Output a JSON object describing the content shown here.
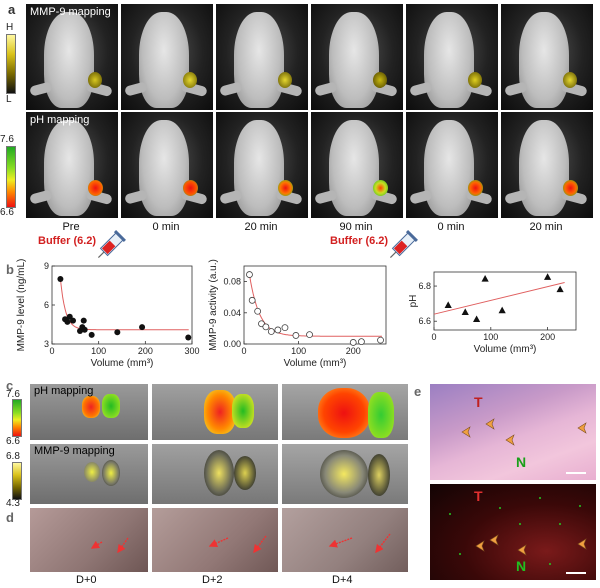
{
  "panel_a": {
    "letter": "a",
    "row1_label": "MMP-9 mapping",
    "row2_label": "pH mapping",
    "bar1_top": "H",
    "bar1_bottom": "L",
    "bar2_top": "7.6",
    "bar2_bottom": "6.6",
    "time_labels": [
      "Pre",
      "0 min",
      "20 min",
      "90 min",
      "0 min",
      "20 min"
    ],
    "buffer_labels": [
      "Buffer (6.2)",
      "Buffer (6.2)"
    ]
  },
  "panel_b": {
    "letter": "b",
    "colors": {
      "fit": "#e06060",
      "marker": "#111111"
    }
  },
  "chart_data": [
    {
      "type": "scatter",
      "xlabel": "Volume (mm³)",
      "ylabel": "MMP-9 level (ng/mL)",
      "xticks": [
        "0",
        "100",
        "200",
        "300"
      ],
      "yticks": [
        "3",
        "6",
        "9"
      ],
      "xlim": [
        0,
        300
      ],
      "ylim": [
        3,
        9
      ],
      "marker": "filled-circle",
      "x": [
        18,
        28,
        33,
        38,
        45,
        60,
        65,
        68,
        70,
        85,
        140,
        193,
        292
      ],
      "y": [
        8.0,
        4.9,
        4.7,
        5.1,
        4.8,
        4.0,
        4.3,
        4.8,
        4.1,
        3.7,
        3.9,
        4.3,
        3.5
      ],
      "fit": {
        "type": "exponential-decay",
        "plateau": 4.1
      }
    },
    {
      "type": "scatter",
      "xlabel": "Volume (mm³)",
      "ylabel": "MMP-9 activity (a.u.)",
      "xticks": [
        "0",
        "100",
        "200"
      ],
      "yticks": [
        "0.00",
        "0.04",
        "0.08"
      ],
      "xlim": [
        0,
        260
      ],
      "ylim": [
        0,
        0.1
      ],
      "marker": "open-circle",
      "x": [
        10,
        15,
        25,
        32,
        40,
        50,
        62,
        75,
        95,
        120,
        200,
        215,
        250
      ],
      "y": [
        0.089,
        0.056,
        0.042,
        0.026,
        0.022,
        0.016,
        0.018,
        0.021,
        0.011,
        0.012,
        0.002,
        0.003,
        0.005
      ],
      "fit": {
        "type": "exponential-decay",
        "plateau": 0.01
      }
    },
    {
      "type": "scatter",
      "xlabel": "Volume (mm³)",
      "ylabel": "pH",
      "xticks": [
        "0",
        "100",
        "200"
      ],
      "yticks": [
        "6.6",
        "6.8"
      ],
      "xlim": [
        0,
        250
      ],
      "ylim": [
        6.55,
        6.88
      ],
      "marker": "filled-triangle",
      "x": [
        25,
        55,
        75,
        90,
        120,
        200,
        222
      ],
      "y": [
        6.69,
        6.65,
        6.61,
        6.84,
        6.66,
        6.85,
        6.78
      ],
      "fit": {
        "type": "linear",
        "y_at_0": 6.64,
        "y_at_230": 6.82
      }
    }
  ],
  "panel_c": {
    "letter": "c",
    "row1_label": "pH mapping",
    "row2_label": "MMP-9 mapping",
    "bar1_top": "7.6",
    "bar1_bottom": "6.6",
    "bar2_top": "6.8",
    "bar2_bottom": "4.3"
  },
  "panel_d": {
    "letter": "d",
    "day_labels": [
      "D+0",
      "D+2",
      "D+4"
    ]
  },
  "panel_e": {
    "letter": "e",
    "tumor_label": "T",
    "necrosis_label": "N"
  }
}
